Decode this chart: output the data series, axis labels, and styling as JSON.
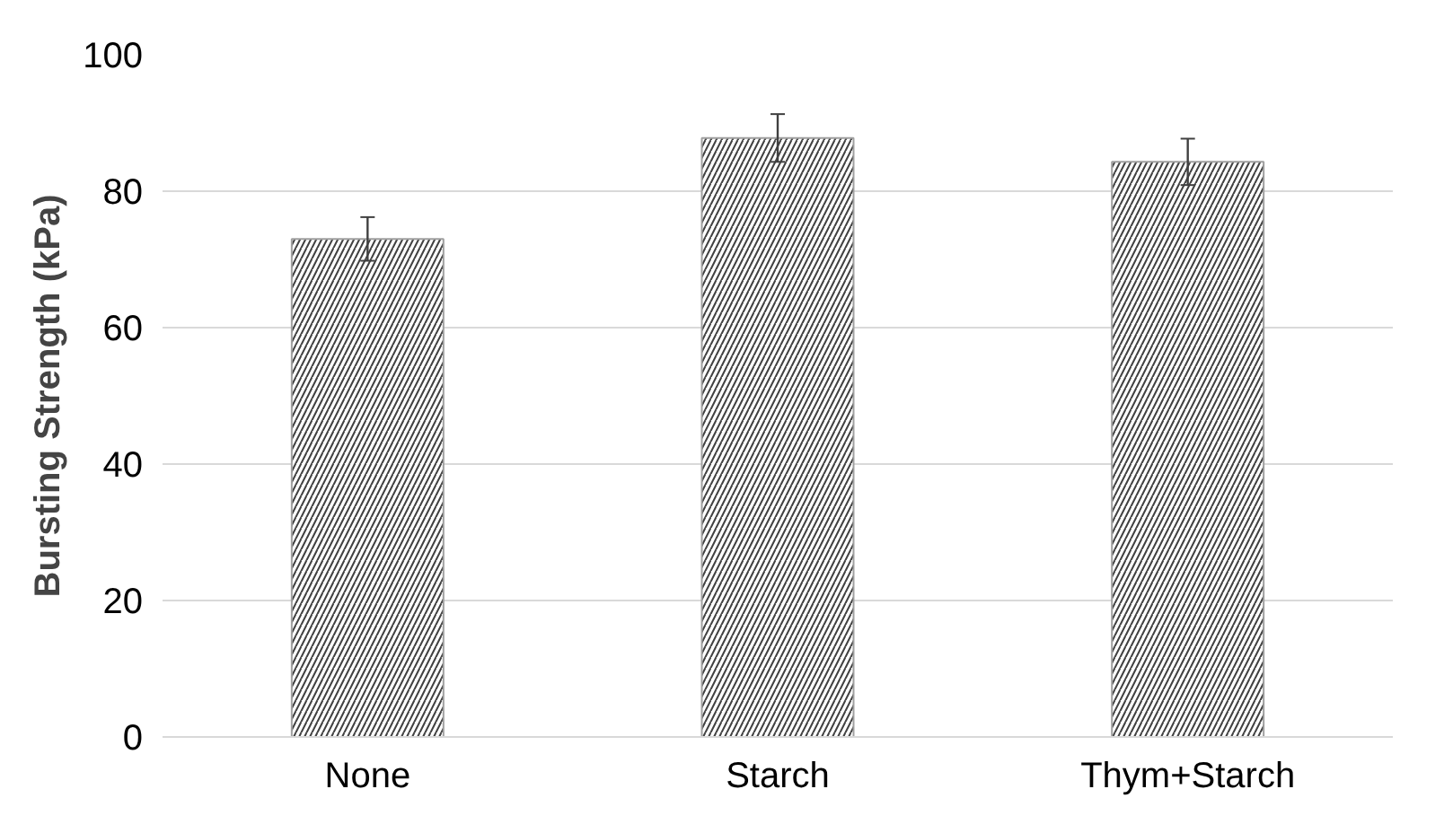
{
  "chart_data": {
    "type": "bar",
    "ylabel": "Bursting Strength (kPa)",
    "categories": [
      "None",
      "Starch",
      "Thym+Starch"
    ],
    "values": [
      73,
      87.8,
      84.3
    ],
    "errors": [
      3.2,
      3.5,
      3.4
    ],
    "color": "#ffffff",
    "ylim": [
      0,
      100
    ],
    "yticks": [
      0,
      20,
      40,
      60,
      80,
      100
    ],
    "grid": "y"
  }
}
